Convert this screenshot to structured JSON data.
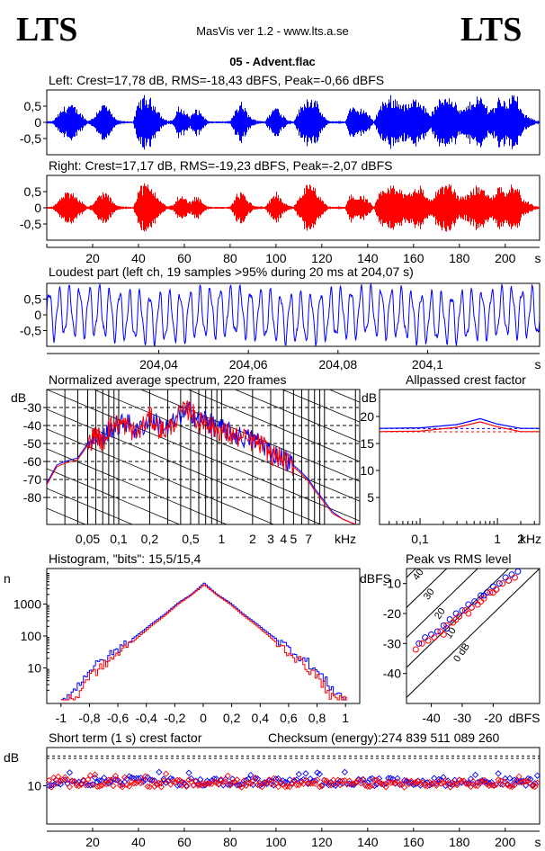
{
  "header": {
    "logo_left": "LTS",
    "logo_right": "LTS",
    "app_title": "MasVis ver 1.2 - www.lts.a.se",
    "file_name": "05 - Advent.flac"
  },
  "colors": {
    "left": "#0000ff",
    "right": "#ff0000",
    "grid": "#000000"
  },
  "panels": {
    "left_title": "Left: Crest=17,78 dB, RMS=-18,43 dBFS, Peak=-0,66 dBFS",
    "right_title": "Right: Crest=17,17 dB, RMS=-19,23 dBFS, Peak=-2,07 dBFS",
    "loudest_title": "Loudest part (left  ch, 19 samples >95% during 20 ms at 204,07 s)",
    "spectrum_title": "Normalized average spectrum, 220 frames",
    "crest_title": "Allpassed crest factor",
    "histogram_title": "Histogram, \"bits\": 15,5/15,4",
    "peak_rms_title": "Peak vs RMS level",
    "short_crest_title": "Short term (1 s) crest factor",
    "checksum_label": "Checksum (energy):",
    "checksum_value": "274 839 511 089 260"
  },
  "chart_data": [
    {
      "type": "area",
      "title": "Left: Crest=17,78 dB, RMS=-18,43 dBFS, Peak=-0,66 dBFS",
      "series": [
        {
          "name": "Left",
          "color": "#0000ff"
        }
      ],
      "yticks": [
        "0,5",
        "0",
        "-0,5"
      ],
      "ylim": [
        -1,
        1
      ],
      "xlim": [
        0,
        215
      ],
      "envelope": [
        0.04,
        0.05,
        0.3,
        0.55,
        0.65,
        0.5,
        0.3,
        0.05,
        0.15,
        0.5,
        0.7,
        0.4,
        0.1,
        0.05,
        0.04,
        0.03,
        0.75,
        0.9,
        0.8,
        0.6,
        0.2,
        0.05,
        0.1,
        0.55,
        0.4,
        0.2,
        0.5,
        0.3,
        0.05,
        0.03,
        0.04,
        0.03,
        0.06,
        0.5,
        0.7,
        0.3,
        0.1,
        0.06,
        0.04,
        0.35,
        0.6,
        0.3,
        0.08,
        0.04,
        0.45,
        0.8,
        0.9,
        0.7,
        0.3,
        0.05,
        0.04,
        0.05,
        0.03,
        0.6,
        0.4,
        0.5,
        0.3,
        0.04,
        0.55,
        0.8,
        0.9,
        0.8,
        0.7,
        0.6,
        0.8,
        0.9,
        0.5,
        0.3,
        0.65,
        0.9,
        1.0,
        0.8,
        0.4,
        0.5,
        0.75,
        0.9,
        0.8,
        0.5,
        0.55,
        0.95,
        0.7,
        1.0,
        0.9,
        0.3,
        0.2,
        0.08,
        0.05
      ]
    },
    {
      "type": "area",
      "title": "Right: Crest=17,17 dB, RMS=-19,23 dBFS, Peak=-2,07 dBFS",
      "series": [
        {
          "name": "Right",
          "color": "#ff0000"
        }
      ],
      "yticks": [
        "0,5",
        "0",
        "-0,5"
      ],
      "ylim": [
        -1,
        1
      ],
      "xlim": [
        0,
        215
      ],
      "xticks": [
        20,
        40,
        60,
        80,
        100,
        120,
        140,
        160,
        180,
        200
      ],
      "xunit": "s",
      "envelope": [
        0.04,
        0.05,
        0.25,
        0.5,
        0.55,
        0.45,
        0.25,
        0.05,
        0.12,
        0.45,
        0.6,
        0.35,
        0.1,
        0.05,
        0.04,
        0.03,
        0.7,
        0.85,
        0.75,
        0.55,
        0.2,
        0.05,
        0.1,
        0.45,
        0.35,
        0.2,
        0.45,
        0.25,
        0.05,
        0.03,
        0.04,
        0.03,
        0.05,
        0.45,
        0.6,
        0.25,
        0.1,
        0.05,
        0.04,
        0.3,
        0.55,
        0.25,
        0.08,
        0.04,
        0.4,
        0.75,
        0.8,
        0.6,
        0.25,
        0.05,
        0.04,
        0.05,
        0.03,
        0.55,
        0.35,
        0.45,
        0.25,
        0.04,
        0.5,
        0.7,
        0.8,
        0.7,
        0.6,
        0.55,
        0.7,
        0.8,
        0.45,
        0.3,
        0.6,
        0.8,
        0.85,
        0.7,
        0.35,
        0.45,
        0.65,
        0.8,
        0.7,
        0.45,
        0.5,
        0.85,
        0.6,
        0.9,
        0.8,
        0.3,
        0.2,
        0.08,
        0.05
      ]
    },
    {
      "type": "line",
      "title": "Loudest part (left  ch, 19 samples >95% during 20 ms at 204,07 s)",
      "series": [
        {
          "name": "Left",
          "color": "#0000ff"
        }
      ],
      "xlim": [
        204.015,
        204.125
      ],
      "ylim": [
        -1,
        1
      ],
      "yticks": [
        "0,5",
        "0",
        "-0,5"
      ],
      "xticks": [
        "204,04",
        "204,06",
        "204,08",
        "204,1"
      ],
      "xunit": "s",
      "cycles": 49
    },
    {
      "type": "line",
      "title": "Normalized average spectrum, 220 frames",
      "ylabel": "dB",
      "xunit": "kHz",
      "xscale": "log",
      "xlim": [
        0.02,
        22
      ],
      "ylim": [
        -95,
        -20
      ],
      "yticks": [
        -30,
        -40,
        -50,
        -60,
        -70,
        -80
      ],
      "xticks": [
        "0,05",
        "0,1",
        "0,2",
        "0,5",
        "1",
        "2",
        "3",
        "4",
        "5",
        "7"
      ],
      "x": [
        0.02,
        0.025,
        0.03,
        0.04,
        0.05,
        0.06,
        0.07,
        0.08,
        0.1,
        0.12,
        0.15,
        0.2,
        0.25,
        0.3,
        0.4,
        0.5,
        0.6,
        0.7,
        0.8,
        1,
        1.2,
        1.5,
        2,
        2.5,
        3,
        4,
        5,
        6,
        7,
        8,
        10,
        12,
        15,
        20
      ],
      "series": [
        {
          "name": "Left",
          "color": "#0000ff",
          "values": [
            -72,
            -62,
            -60,
            -58,
            -50,
            -45,
            -48,
            -42,
            -40,
            -38,
            -44,
            -36,
            -40,
            -42,
            -34,
            -32,
            -38,
            -36,
            -40,
            -42,
            -44,
            -46,
            -48,
            -50,
            -55,
            -58,
            -62,
            -66,
            -70,
            -75,
            -82,
            -88,
            -92,
            -95
          ]
        },
        {
          "name": "Right",
          "color": "#ff0000",
          "values": [
            -73,
            -63,
            -61,
            -59,
            -51,
            -44,
            -50,
            -41,
            -39,
            -40,
            -45,
            -35,
            -42,
            -43,
            -33,
            -31,
            -39,
            -37,
            -41,
            -43,
            -45,
            -47,
            -49,
            -51,
            -56,
            -59,
            -63,
            -67,
            -71,
            -76,
            -83,
            -89,
            -92,
            -95
          ]
        }
      ]
    },
    {
      "type": "line",
      "title": "Allpassed crest factor",
      "ylabel": "dB",
      "xunit": "kHz",
      "xscale": "log",
      "xlim": [
        0.03,
        3.5
      ],
      "ylim": [
        0,
        25
      ],
      "yticks": [
        20,
        15,
        10,
        5
      ],
      "xticks": [
        "0,1",
        "1",
        "2"
      ],
      "x": [
        0.03,
        0.1,
        0.3,
        0.6,
        1,
        2,
        3.5
      ],
      "series": [
        {
          "name": "Left",
          "color": "#0000ff",
          "values": [
            17.8,
            17.9,
            18.5,
            19.6,
            18.6,
            17.8,
            17.8
          ],
          "reference": 17.78
        },
        {
          "name": "Right",
          "color": "#ff0000",
          "values": [
            17.2,
            17.3,
            18.0,
            19.0,
            18.1,
            17.2,
            17.2
          ],
          "reference": 17.17
        }
      ]
    },
    {
      "type": "line",
      "title": "Histogram, \"bits\": 15,5/15,4",
      "ylabel": "n",
      "yscale": "log",
      "ylim": [
        1,
        10000
      ],
      "yticks": [
        1000,
        100,
        10
      ],
      "xlim": [
        -1.1,
        1.1
      ],
      "xticks": [
        "-1",
        "-0,8",
        "-0,6",
        "-0,4",
        "-0,2",
        "0",
        "0,2",
        "0,4",
        "0,6",
        "0,8",
        "1"
      ],
      "x": [
        -1.0,
        -0.9,
        -0.8,
        -0.7,
        -0.6,
        -0.5,
        -0.4,
        -0.3,
        -0.2,
        -0.1,
        -0.05,
        0,
        0.05,
        0.1,
        0.2,
        0.3,
        0.4,
        0.5,
        0.6,
        0.7,
        0.8,
        0.9,
        1.0
      ],
      "series": [
        {
          "name": "Left",
          "color": "#0000ff",
          "values": [
            1,
            2,
            8,
            15,
            30,
            60,
            120,
            250,
            500,
            1100,
            2000,
            4500,
            2000,
            1100,
            500,
            250,
            120,
            60,
            30,
            15,
            6,
            2,
            1
          ]
        },
        {
          "name": "Right",
          "color": "#ff0000",
          "values": [
            1,
            1,
            5,
            10,
            22,
            45,
            100,
            220,
            450,
            1000,
            1900,
            4000,
            1900,
            1000,
            450,
            220,
            100,
            45,
            22,
            10,
            4,
            1,
            1
          ]
        }
      ]
    },
    {
      "type": "scatter",
      "title": "Peak vs RMS level",
      "ylabel": "dBFS",
      "xunit": "dBFS",
      "xlim": [
        -48,
        -5
      ],
      "ylim": [
        -50,
        -5
      ],
      "yticks": [
        -10,
        -20,
        -30,
        -40
      ],
      "xticks": [
        -40,
        -30,
        -20
      ],
      "diagonal_labels": [
        "40",
        "30",
        "20",
        "10",
        "0 dB"
      ],
      "series": [
        {
          "name": "Left",
          "color": "#0000ff",
          "points": [
            [
              -44,
              -30
            ],
            [
              -42,
              -28
            ],
            [
              -40,
              -27
            ],
            [
              -38,
              -26
            ],
            [
              -36,
              -24
            ],
            [
              -34,
              -22
            ],
            [
              -32,
              -20
            ],
            [
              -30,
              -19
            ],
            [
              -28,
              -17
            ],
            [
              -26,
              -16
            ],
            [
              -24,
              -14
            ],
            [
              -22,
              -13
            ],
            [
              -20,
              -11
            ],
            [
              -18,
              -10
            ],
            [
              -16,
              -8
            ],
            [
              -14,
              -7
            ],
            [
              -12,
              -6
            ],
            [
              -35,
              -25
            ],
            [
              -31,
              -21
            ],
            [
              -27,
              -18
            ],
            [
              -23,
              -14
            ],
            [
              -19,
              -12
            ],
            [
              -15,
              -9
            ]
          ]
        },
        {
          "name": "Right",
          "color": "#ff0000",
          "points": [
            [
              -45,
              -32
            ],
            [
              -43,
              -30
            ],
            [
              -41,
              -29
            ],
            [
              -39,
              -28
            ],
            [
              -37,
              -26
            ],
            [
              -35,
              -24
            ],
            [
              -33,
              -23
            ],
            [
              -31,
              -21
            ],
            [
              -29,
              -19
            ],
            [
              -27,
              -18
            ],
            [
              -25,
              -17
            ],
            [
              -23,
              -15
            ],
            [
              -21,
              -13
            ],
            [
              -19,
              -12
            ],
            [
              -17,
              -10
            ],
            [
              -15,
              -9
            ],
            [
              -13,
              -8
            ],
            [
              -36,
              -27
            ],
            [
              -32,
              -22
            ],
            [
              -28,
              -20
            ],
            [
              -24,
              -16
            ],
            [
              -20,
              -13
            ]
          ]
        }
      ]
    },
    {
      "type": "scatter",
      "title": "Short term (1 s) crest factor",
      "ylabel": "dB",
      "xunit": "s",
      "xlim": [
        0,
        215
      ],
      "ylim": [
        0,
        20
      ],
      "yticks": [
        10
      ],
      "xticks": [
        20,
        40,
        60,
        80,
        100,
        120,
        140,
        160,
        180,
        200
      ],
      "reference_levels": [
        17.78,
        17.17
      ],
      "series": [
        {
          "name": "Left",
          "color": "#0000ff",
          "base": 11.0
        },
        {
          "name": "Right",
          "color": "#ff0000",
          "base": 10.6
        }
      ]
    }
  ]
}
